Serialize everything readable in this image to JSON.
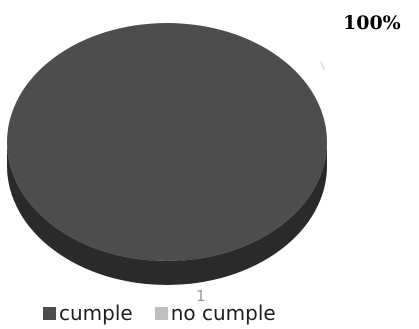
{
  "chart_data": {
    "type": "pie",
    "style": "3d",
    "categories": [
      "cumple",
      "no cumple"
    ],
    "values": [
      100,
      0
    ],
    "colors": [
      "#4d4d4d",
      "#bfbfbf"
    ],
    "data_labels": [
      "100%"
    ],
    "category_axis_label": "1",
    "legend": "bottom"
  }
}
